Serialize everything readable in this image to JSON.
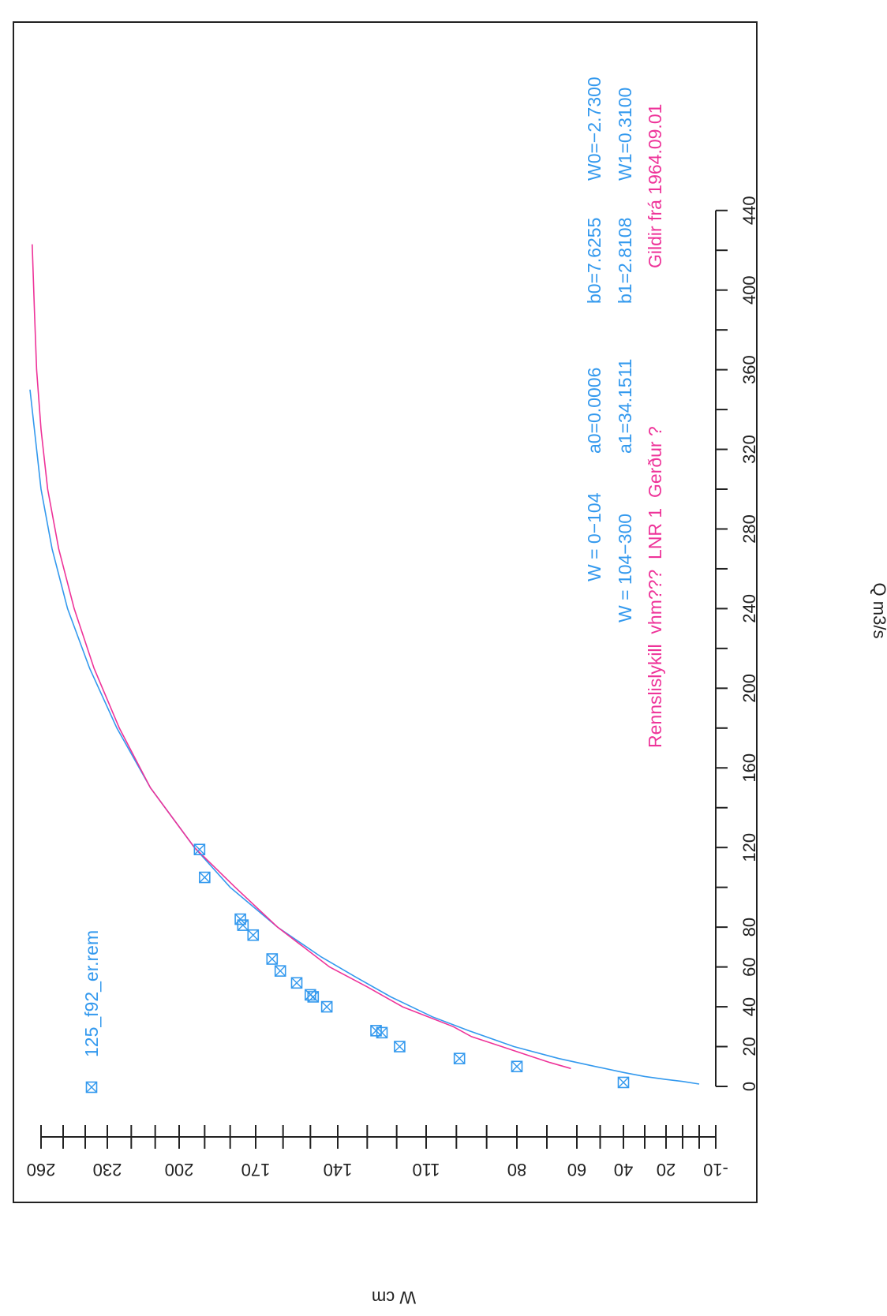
{
  "chart_data": {
    "type": "line",
    "xlabel": "Q m3/s",
    "ylabel": "W cm",
    "xlim": [
      -20,
      445
    ],
    "ylim": [
      -10,
      265
    ],
    "x_ticks": [
      0,
      20,
      40,
      60,
      80,
      120,
      160,
      200,
      240,
      280,
      320,
      360,
      400,
      440
    ],
    "x_minor_ticks": [
      0,
      20,
      40,
      60,
      80,
      100,
      120,
      140,
      160,
      180,
      200,
      220,
      240,
      260,
      280,
      300,
      320,
      340,
      360,
      380,
      400,
      420,
      440
    ],
    "y_ticks": [
      -10,
      20,
      40,
      60,
      80,
      110,
      140,
      170,
      200,
      230,
      260
    ],
    "y_minor_ticks": [
      -10,
      0,
      10,
      20,
      30,
      40,
      50,
      60,
      70,
      80,
      90,
      100,
      110,
      120,
      130,
      140,
      150,
      160,
      170,
      180,
      190,
      200,
      210,
      220,
      230,
      240,
      250,
      260
    ],
    "grid": false,
    "colors": {
      "blue": "#3399ee",
      "magenta": "#ee3399",
      "frame": "#222222"
    },
    "legend": {
      "marker": "square-x",
      "label": "125_f92_er.rem",
      "placement": "top-left",
      "color": "#3399ee"
    },
    "annotations": [
      {
        "color": "#3399ee",
        "cells": [
          "W = 0−104",
          "a0=0.0006",
          "b0=7.6255",
          "W0=−2.7300"
        ]
      },
      {
        "color": "#3399ee",
        "cells": [
          "W = 104−300",
          "a1=34.1511",
          "b1=2.8108",
          "W1=0.3100"
        ]
      },
      {
        "color": "#ee3399",
        "cells": [
          "Rennslislykill  vhm???  LNR 1  Gerður ?",
          "Gildir frá 1964.09.01"
        ]
      }
    ],
    "series": [
      {
        "color": "#3399ee",
        "x": [
          1.2,
          2.5,
          3.5,
          5,
          7,
          10,
          14,
          20,
          28,
          35,
          45,
          55,
          65,
          80,
          100,
          120,
          150,
          180,
          210,
          240,
          270,
          300,
          330,
          350
        ],
        "y": [
          0,
          10,
          20,
          30,
          40,
          52,
          66,
          81,
          96,
          108,
          122,
          134,
          146,
          162,
          180,
          194,
          212,
          226,
          238,
          248,
          255,
          260,
          263,
          265
        ]
      },
      {
        "color": "#ee3399",
        "x": [
          9,
          12,
          15,
          20,
          25,
          30,
          40,
          50,
          60,
          80,
          100,
          120,
          150,
          180,
          210,
          240,
          270,
          300,
          330,
          360,
          390,
          423
        ],
        "y": [
          62,
          69,
          75,
          85,
          95,
          101,
          118,
          130,
          143,
          162,
          178,
          194,
          212,
          225,
          236,
          245,
          252,
          257,
          260,
          262,
          263,
          264
        ]
      }
    ],
    "points": [
      {
        "x": 2,
        "y": 40
      },
      {
        "x": 10,
        "y": 80
      },
      {
        "x": 14,
        "y": 99
      },
      {
        "x": 20,
        "y": 119
      },
      {
        "x": 27,
        "y": 125
      },
      {
        "x": 28,
        "y": 127
      },
      {
        "x": 40,
        "y": 144
      },
      {
        "x": 45,
        "y": 149
      },
      {
        "x": 46,
        "y": 150
      },
      {
        "x": 52,
        "y": 155
      },
      {
        "x": 58,
        "y": 161
      },
      {
        "x": 64,
        "y": 164
      },
      {
        "x": 76,
        "y": 171
      },
      {
        "x": 81,
        "y": 175
      },
      {
        "x": 84,
        "y": 176
      },
      {
        "x": 105,
        "y": 190
      },
      {
        "x": 119,
        "y": 192
      }
    ]
  }
}
